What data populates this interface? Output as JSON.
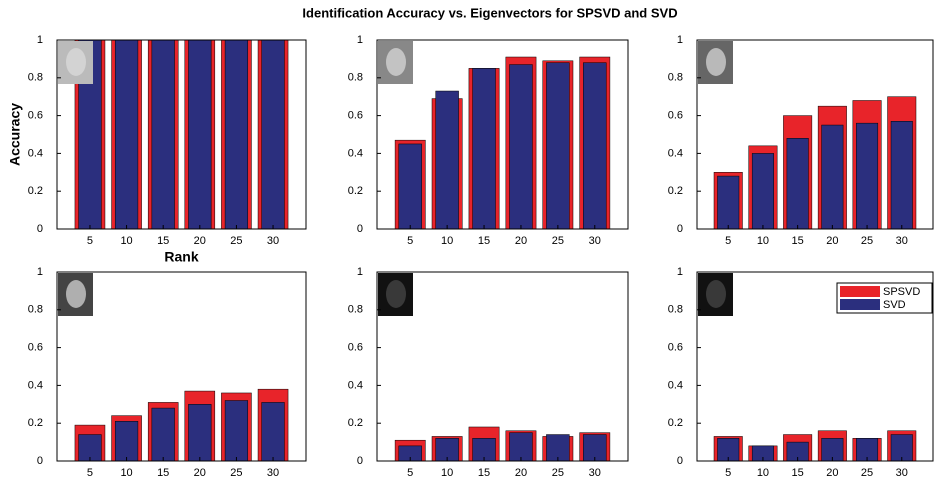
{
  "title": "Identification Accuracy vs. Eigenvectors for SPSVD and SVD",
  "chart_data": [
    {
      "type": "bar",
      "x": [
        5,
        10,
        15,
        20,
        25,
        30
      ],
      "xlim": [
        0.5,
        34.5
      ],
      "xticks": [
        5,
        10,
        15,
        20,
        25,
        30
      ],
      "ylim": [
        0,
        1
      ],
      "yticks": [
        0,
        0.2,
        0.4,
        0.6,
        0.8,
        1
      ],
      "ylabel": "Accuracy",
      "xlabel": "Rank",
      "series": [
        {
          "color": "#e8242a",
          "values": [
            1,
            1,
            1,
            1,
            1,
            1
          ]
        },
        {
          "color": "#2b2f7e",
          "values": [
            1,
            1,
            1,
            1,
            1,
            1
          ]
        }
      ]
    },
    {
      "type": "bar",
      "x": [
        5,
        10,
        15,
        20,
        25,
        30
      ],
      "xlim": [
        0.5,
        34.5
      ],
      "xticks": [
        5,
        10,
        15,
        20,
        25,
        30
      ],
      "ylim": [
        0,
        1
      ],
      "yticks": [
        0,
        0.2,
        0.4,
        0.6,
        0.8,
        1
      ],
      "series": [
        {
          "color": "#e8242a",
          "values": [
            0.47,
            0.69,
            0.85,
            0.91,
            0.89,
            0.91
          ]
        },
        {
          "color": "#2b2f7e",
          "values": [
            0.45,
            0.73,
            0.85,
            0.87,
            0.88,
            0.88
          ]
        }
      ]
    },
    {
      "type": "bar",
      "x": [
        5,
        10,
        15,
        20,
        25,
        30
      ],
      "xlim": [
        0.5,
        34.5
      ],
      "xticks": [
        5,
        10,
        15,
        20,
        25,
        30
      ],
      "ylim": [
        0,
        1
      ],
      "yticks": [
        0,
        0.2,
        0.4,
        0.6,
        0.8,
        1
      ],
      "series": [
        {
          "color": "#e8242a",
          "values": [
            0.3,
            0.44,
            0.6,
            0.65,
            0.68,
            0.7
          ]
        },
        {
          "color": "#2b2f7e",
          "values": [
            0.28,
            0.4,
            0.48,
            0.55,
            0.56,
            0.57
          ]
        }
      ]
    },
    {
      "type": "bar",
      "x": [
        5,
        10,
        15,
        20,
        25,
        30
      ],
      "xlim": [
        0.5,
        34.5
      ],
      "xticks": [
        5,
        10,
        15,
        20,
        25,
        30
      ],
      "ylim": [
        0,
        1
      ],
      "yticks": [
        0,
        0.2,
        0.4,
        0.6,
        0.8,
        1
      ],
      "series": [
        {
          "color": "#e8242a",
          "values": [
            0.19,
            0.24,
            0.31,
            0.37,
            0.36,
            0.38
          ]
        },
        {
          "color": "#2b2f7e",
          "values": [
            0.14,
            0.21,
            0.28,
            0.3,
            0.32,
            0.31
          ]
        }
      ]
    },
    {
      "type": "bar",
      "x": [
        5,
        10,
        15,
        20,
        25,
        30
      ],
      "xlim": [
        0.5,
        34.5
      ],
      "xticks": [
        5,
        10,
        15,
        20,
        25,
        30
      ],
      "ylim": [
        0,
        1
      ],
      "yticks": [
        0,
        0.2,
        0.4,
        0.6,
        0.8,
        1
      ],
      "series": [
        {
          "color": "#e8242a",
          "values": [
            0.11,
            0.13,
            0.18,
            0.16,
            0.13,
            0.15
          ]
        },
        {
          "color": "#2b2f7e",
          "values": [
            0.08,
            0.12,
            0.12,
            0.15,
            0.14,
            0.14
          ]
        }
      ]
    },
    {
      "type": "bar",
      "x": [
        5,
        10,
        15,
        20,
        25,
        30
      ],
      "xlim": [
        0.5,
        34.5
      ],
      "xticks": [
        5,
        10,
        15,
        20,
        25,
        30
      ],
      "ylim": [
        0,
        1
      ],
      "yticks": [
        0,
        0.2,
        0.4,
        0.6,
        0.8,
        1
      ],
      "legend": "upper right",
      "series": [
        {
          "name": "SPSVD",
          "color": "#e8242a",
          "values": [
            0.13,
            0.08,
            0.14,
            0.16,
            0.12,
            0.16
          ]
        },
        {
          "name": "SVD",
          "color": "#2b2f7e",
          "values": [
            0.12,
            0.08,
            0.1,
            0.12,
            0.12,
            0.14
          ]
        }
      ]
    }
  ]
}
